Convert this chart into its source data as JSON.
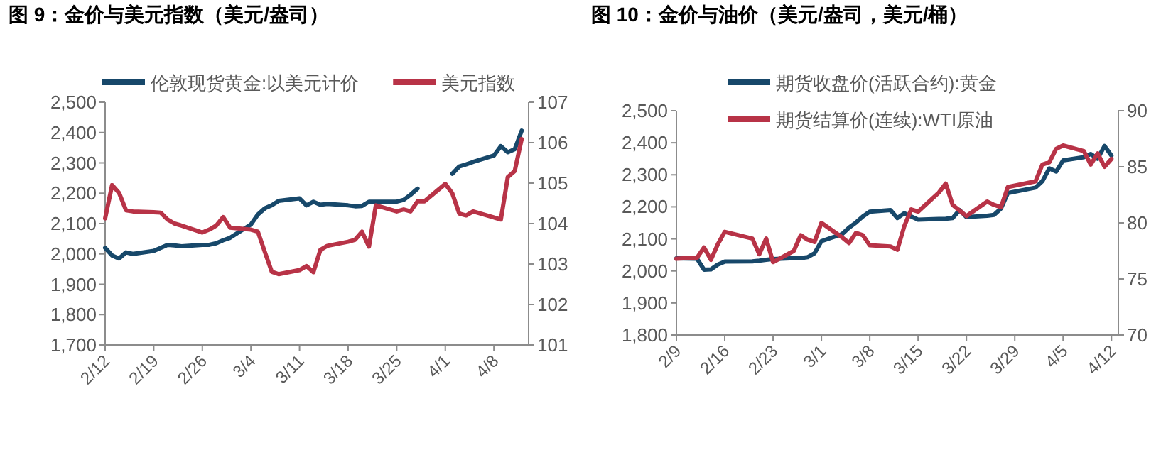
{
  "chart_data": [
    {
      "type": "line",
      "title": "图 9：金价与美元指数（美元/盎司）",
      "legend": "top",
      "x": [
        "--02-12",
        "--02-13",
        "--02-14",
        "--02-15",
        "--02-16",
        "--02-19",
        "--02-20",
        "--02-21",
        "--02-22",
        "--02-23",
        "--02-26",
        "--02-27",
        "--02-28",
        "--02-29",
        "--03-01",
        "--03-04",
        "--03-05",
        "--03-06",
        "--03-07",
        "--03-08",
        "--03-11",
        "--03-12",
        "--03-13",
        "--03-14",
        "--03-15",
        "--03-18",
        "--03-19",
        "--03-20",
        "--03-21",
        "--03-22",
        "--03-25",
        "--03-26",
        "--03-27",
        "--03-28",
        "--03-29",
        "--04-01",
        "--04-02",
        "--04-03",
        "--04-04",
        "--04-05",
        "--04-08",
        "--04-09",
        "--04-10",
        "--04-11",
        "--04-12"
      ],
      "xlim": [
        "--02-12",
        "--04-13"
      ],
      "xticks": [
        {
          "value": "--02-12",
          "label": "2/12"
        },
        {
          "value": "--02-19",
          "label": "2/19"
        },
        {
          "value": "--02-26",
          "label": "2/26"
        },
        {
          "value": "--03-04",
          "label": "3/4"
        },
        {
          "value": "--03-11",
          "label": "3/11"
        },
        {
          "value": "--03-18",
          "label": "3/18"
        },
        {
          "value": "--03-25",
          "label": "3/25"
        },
        {
          "value": "--04-01",
          "label": "4/1"
        },
        {
          "value": "--04-08",
          "label": "4/8"
        }
      ],
      "ylim": [
        1700,
        2500
      ],
      "yticks": [
        {
          "value": 1700,
          "label": "1,700"
        },
        {
          "value": 1800,
          "label": "1,800"
        },
        {
          "value": 1900,
          "label": "1,900"
        },
        {
          "value": 2000,
          "label": "2,000"
        },
        {
          "value": 2100,
          "label": "2,100"
        },
        {
          "value": 2200,
          "label": "2,200"
        },
        {
          "value": 2300,
          "label": "2,300"
        },
        {
          "value": 2400,
          "label": "2,400"
        },
        {
          "value": 2500,
          "label": "2,500"
        }
      ],
      "y2lim": [
        101,
        107
      ],
      "y2ticks": [
        101,
        102,
        103,
        104,
        105,
        106,
        107
      ],
      "series": [
        {
          "name": "伦敦现货黄金:以美元计价",
          "color": "#17486a",
          "values": [
            2020,
            1995,
            1985,
            2005,
            2000,
            2010,
            2020,
            2030,
            2028,
            2025,
            2030,
            2030,
            2035,
            2045,
            2053,
            2097,
            2130,
            2150,
            2160,
            2175,
            2183,
            2160,
            2172,
            2162,
            2165,
            2160,
            2157,
            2158,
            2172,
            2172,
            2172,
            2178,
            2195,
            2215,
            null,
            null,
            2264,
            2288,
            2295,
            2303,
            2324,
            2355,
            2335,
            2345,
            2406
          ]
        },
        {
          "name": "美元指数",
          "color": "#b83347",
          "axis": "y2",
          "values": [
            104.13,
            104.95,
            104.76,
            104.33,
            104.3,
            104.28,
            104.27,
            104.1,
            104.0,
            103.95,
            103.78,
            103.85,
            103.95,
            104.16,
            103.9,
            103.85,
            103.8,
            103.3,
            102.81,
            102.75,
            102.85,
            102.95,
            102.8,
            103.35,
            103.45,
            103.55,
            103.6,
            103.8,
            103.43,
            104.45,
            104.3,
            104.35,
            104.3,
            104.55,
            104.55,
            104.98,
            104.75,
            104.25,
            104.2,
            104.3,
            104.15,
            104.1,
            105.15,
            105.3,
            106.09
          ]
        }
      ]
    },
    {
      "type": "line",
      "title": "图 10：金价与油价（美元/盎司，美元/桶）",
      "legend": "top",
      "x": [
        "--02-09",
        "--02-12",
        "--02-13",
        "--02-14",
        "--02-15",
        "--02-16",
        "--02-20",
        "--02-21",
        "--02-22",
        "--02-23",
        "--02-26",
        "--02-27",
        "--02-28",
        "--02-29",
        "--03-01",
        "--03-04",
        "--03-05",
        "--03-06",
        "--03-07",
        "--03-08",
        "--03-11",
        "--03-12",
        "--03-13",
        "--03-14",
        "--03-15",
        "--03-18",
        "--03-19",
        "--03-20",
        "--03-21",
        "--03-22",
        "--03-25",
        "--03-26",
        "--03-27",
        "--03-28",
        "--04-01",
        "--04-02",
        "--04-03",
        "--04-04",
        "--04-05",
        "--04-08",
        "--04-09",
        "--04-10",
        "--04-11",
        "--04-12"
      ],
      "xlim": [
        "--02-09",
        "--04-13"
      ],
      "xticks": [
        {
          "value": "--02-09",
          "label": "2/9"
        },
        {
          "value": "--02-16",
          "label": "2/16"
        },
        {
          "value": "--02-23",
          "label": "2/23"
        },
        {
          "value": "--03-01",
          "label": "3/1"
        },
        {
          "value": "--03-08",
          "label": "3/8"
        },
        {
          "value": "--03-15",
          "label": "3/15"
        },
        {
          "value": "--03-22",
          "label": "3/22"
        },
        {
          "value": "--03-29",
          "label": "3/29"
        },
        {
          "value": "--04-05",
          "label": "4/5"
        },
        {
          "value": "--04-12",
          "label": "4/12"
        }
      ],
      "ylim": [
        1800,
        2500
      ],
      "yticks": [
        {
          "value": 1800,
          "label": "1,800"
        },
        {
          "value": 1900,
          "label": "1,900"
        },
        {
          "value": 2000,
          "label": "2,000"
        },
        {
          "value": 2100,
          "label": "2,100"
        },
        {
          "value": 2200,
          "label": "2,200"
        },
        {
          "value": 2300,
          "label": "2,300"
        },
        {
          "value": 2400,
          "label": "2,400"
        },
        {
          "value": 2500,
          "label": "2,500"
        }
      ],
      "y2lim": [
        70,
        90
      ],
      "y2ticks": [
        70,
        75,
        80,
        85,
        90
      ],
      "series": [
        {
          "name": "期货收盘价(活跃合约):黄金",
          "color": "#17486a",
          "values": [
            2039,
            2038,
            2004,
            2005,
            2020,
            2029,
            2030,
            2032,
            2035,
            2037,
            2040,
            2040,
            2043,
            2055,
            2093,
            2115,
            2135,
            2151,
            2170,
            2185,
            2190,
            2165,
            2180,
            2170,
            2160,
            2162,
            2163,
            2165,
            2190,
            2168,
            2172,
            2175,
            2195,
            2243,
            2260,
            2280,
            2320,
            2310,
            2345,
            2355,
            2365,
            2350,
            2390,
            2360
          ]
        },
        {
          "name": "期货结算价(连续):WTI原油",
          "color": "#b83347",
          "axis": "y2",
          "values": [
            76.8,
            76.9,
            77.8,
            76.7,
            78.1,
            79.2,
            78.6,
            77.2,
            78.6,
            76.5,
            77.5,
            78.9,
            78.5,
            78.3,
            80.0,
            78.7,
            78.2,
            79.1,
            78.9,
            78.0,
            77.9,
            77.6,
            79.7,
            81.2,
            81.0,
            82.7,
            83.5,
            81.6,
            81.1,
            80.6,
            81.9,
            81.6,
            81.4,
            83.2,
            83.7,
            85.2,
            85.4,
            86.6,
            86.9,
            86.4,
            85.2,
            86.2,
            85.0,
            85.7
          ]
        }
      ]
    }
  ]
}
